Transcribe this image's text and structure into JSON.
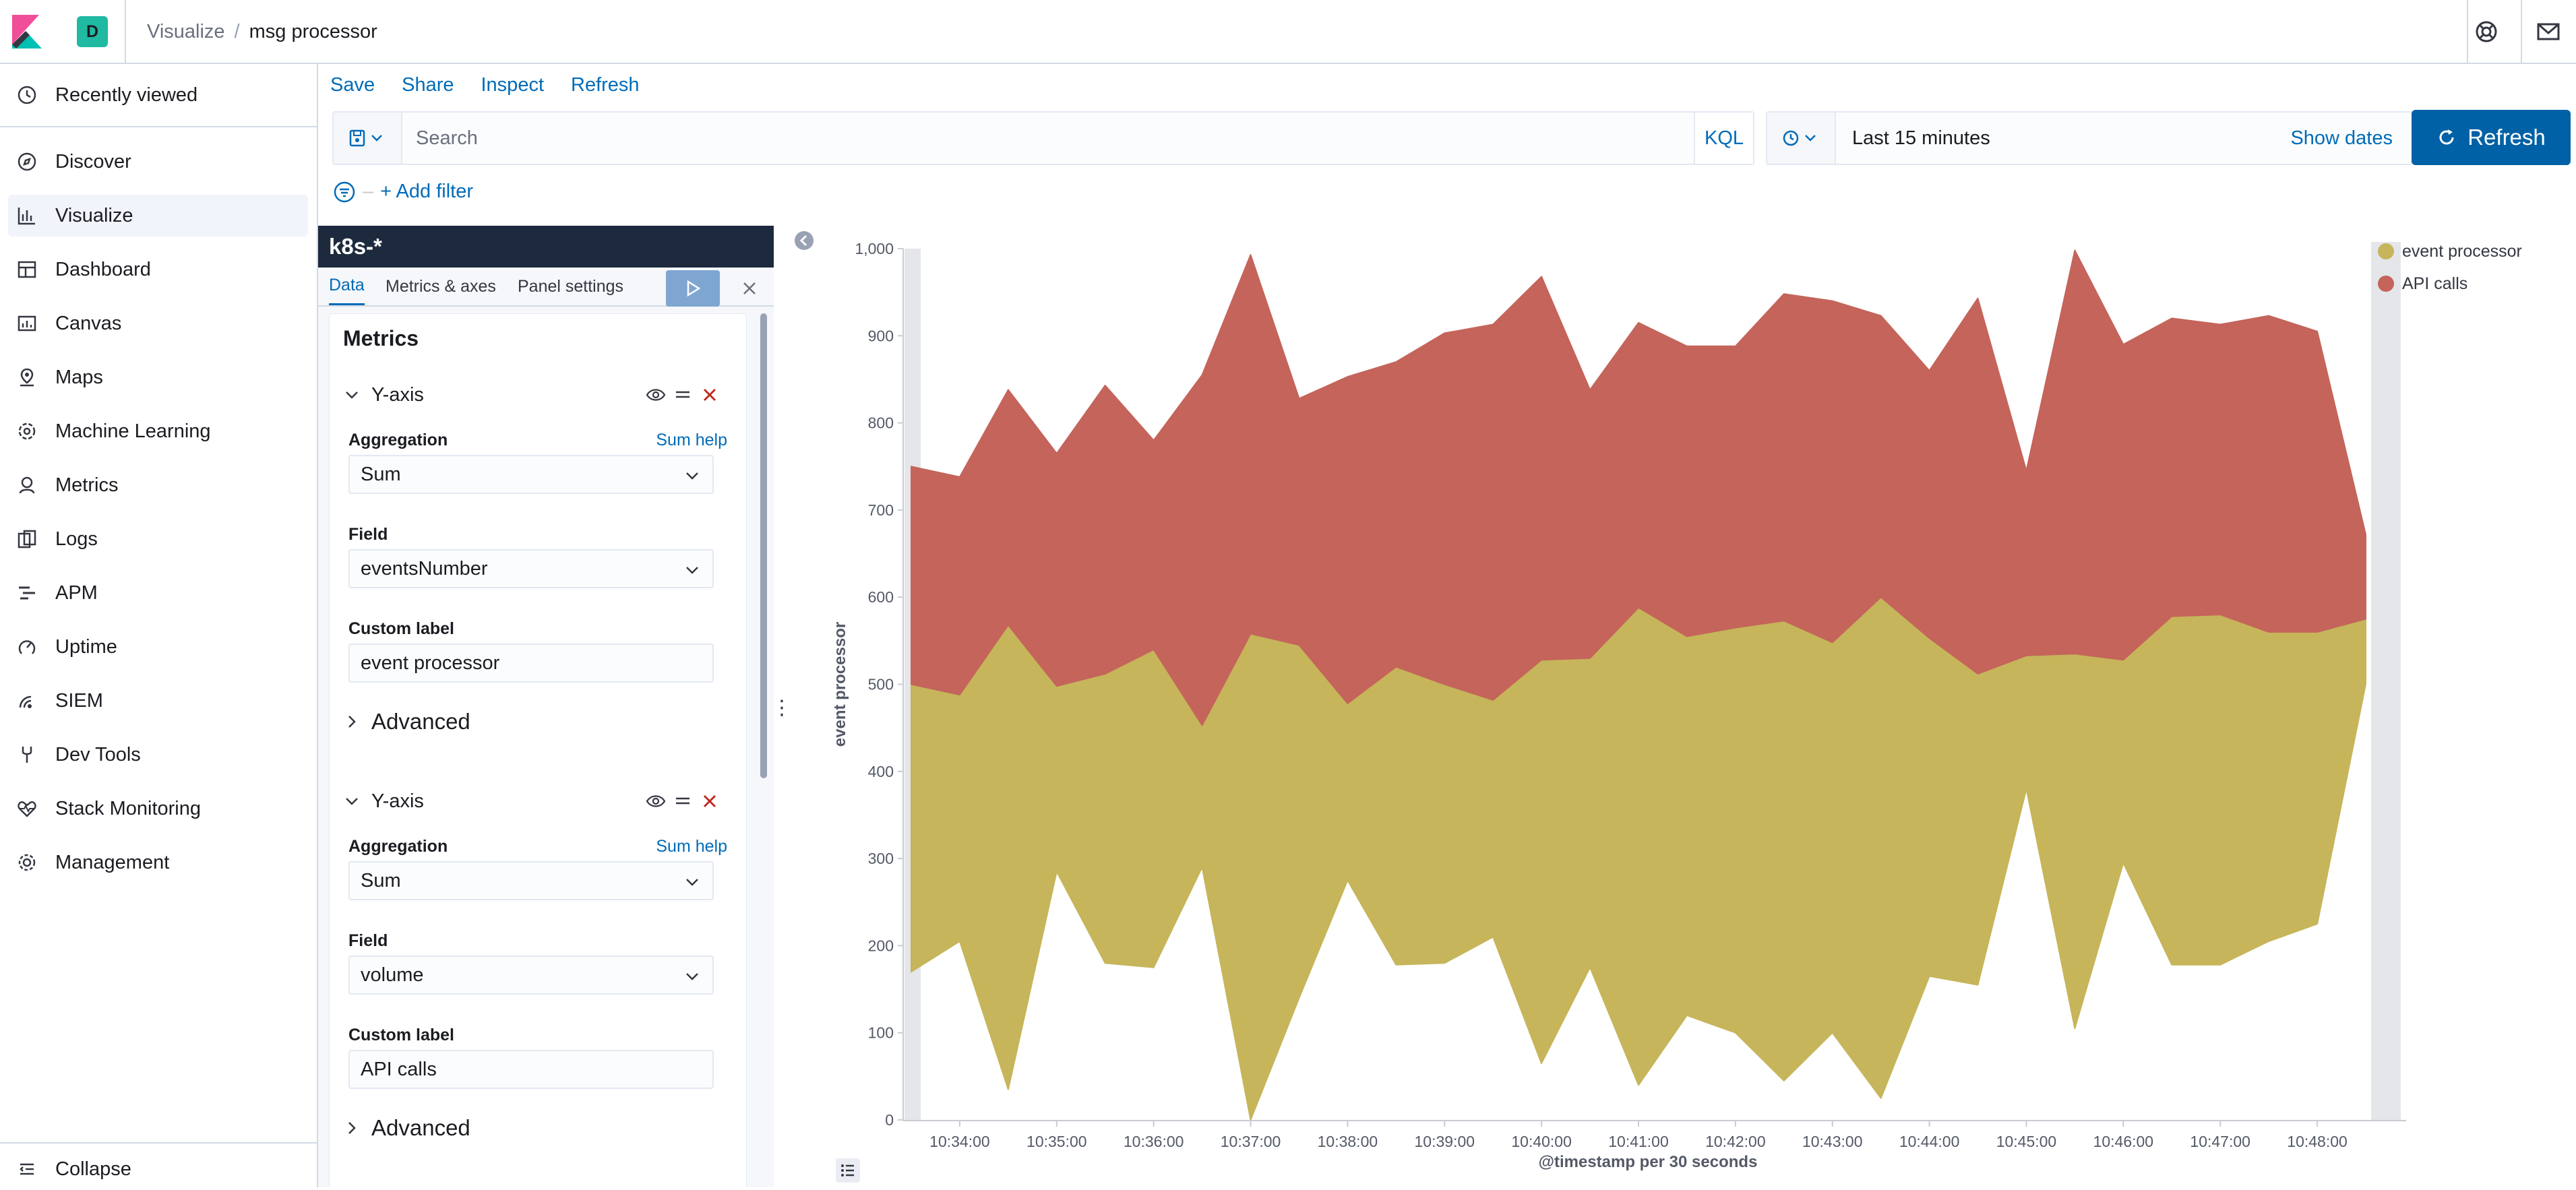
{
  "header": {
    "space_initial": "D",
    "breadcrumb_parent": "Visualize",
    "breadcrumb_current": "msg processor"
  },
  "nav": {
    "recently_viewed": "Recently viewed",
    "items": [
      {
        "label": "Discover",
        "icon": "compass-icon"
      },
      {
        "label": "Visualize",
        "icon": "visualize-icon"
      },
      {
        "label": "Dashboard",
        "icon": "dashboard-icon"
      },
      {
        "label": "Canvas",
        "icon": "canvas-icon"
      },
      {
        "label": "Maps",
        "icon": "maps-icon"
      },
      {
        "label": "Machine Learning",
        "icon": "machine-learning-icon"
      },
      {
        "label": "Metrics",
        "icon": "metrics-icon"
      },
      {
        "label": "Logs",
        "icon": "logs-icon"
      },
      {
        "label": "APM",
        "icon": "apm-icon"
      },
      {
        "label": "Uptime",
        "icon": "uptime-icon"
      },
      {
        "label": "SIEM",
        "icon": "siem-icon"
      },
      {
        "label": "Dev Tools",
        "icon": "dev-tools-icon"
      },
      {
        "label": "Stack Monitoring",
        "icon": "stack-monitoring-icon"
      },
      {
        "label": "Management",
        "icon": "gear-icon"
      }
    ],
    "collapse": "Collapse"
  },
  "topmenu": {
    "save": "Save",
    "share": "Share",
    "inspect": "Inspect",
    "refresh": "Refresh"
  },
  "query": {
    "placeholder": "Search",
    "language": "KQL",
    "time_range": "Last 15 minutes",
    "show_dates": "Show dates",
    "refresh_button": "Refresh",
    "add_filter": "+ Add filter"
  },
  "editor": {
    "index_pattern": "k8s-*",
    "tabs": [
      "Data",
      "Metrics & axes",
      "Panel settings"
    ],
    "metrics_title": "Metrics",
    "metrics": [
      {
        "title": "Y-axis",
        "aggregation_label": "Aggregation",
        "help": "Sum help",
        "aggregation": "Sum",
        "field_label": "Field",
        "field": "eventsNumber",
        "custom_label_label": "Custom label",
        "custom_label": "event processor",
        "advanced": "Advanced"
      },
      {
        "title": "Y-axis",
        "aggregation_label": "Aggregation",
        "help": "Sum help",
        "aggregation": "Sum",
        "field_label": "Field",
        "field": "volume",
        "custom_label_label": "Custom label",
        "custom_label": "API calls",
        "advanced": "Advanced"
      }
    ]
  },
  "colors": {
    "series1": "#c6b55a",
    "series2": "#c4645b",
    "primary": "#0061a6",
    "nav_dark": "#1d2a3e"
  },
  "chart_data": {
    "type": "area",
    "stacked": true,
    "ylabel": "event processor",
    "xlabel": "@timestamp per 30 seconds",
    "ylim": [
      0,
      1000
    ],
    "yticks": [
      0,
      100,
      200,
      300,
      400,
      500,
      600,
      700,
      800,
      900,
      1000
    ],
    "ytick_labels": [
      "0",
      "100",
      "200",
      "300",
      "400",
      "500",
      "600",
      "700",
      "800",
      "900",
      "1,000"
    ],
    "x_start": "10:33:30",
    "x_step_seconds": 30,
    "x_tick_labels": [
      "10:34:00",
      "10:35:00",
      "10:36:00",
      "10:37:00",
      "10:38:00",
      "10:39:00",
      "10:40:00",
      "10:41:00",
      "10:42:00",
      "10:43:00",
      "10:44:00",
      "10:45:00",
      "10:46:00",
      "10:47:00",
      "10:48:00"
    ],
    "legend_position": "top-right",
    "series": [
      {
        "name": "event processor",
        "low": [
          170,
          205,
          35,
          285,
          180,
          175,
          290,
          0,
          140,
          275,
          178,
          180,
          210,
          65,
          175,
          40,
          120,
          100,
          45,
          100,
          25,
          165,
          155,
          380,
          105,
          295,
          178,
          178,
          205,
          225,
          500
        ],
        "high": [
          500,
          488,
          568,
          498,
          512,
          540,
          453,
          558,
          545,
          478,
          520,
          500,
          482,
          528,
          530,
          588,
          555,
          565,
          573,
          548,
          600,
          553,
          512,
          533,
          535,
          528,
          578,
          580,
          560,
          560,
          575
        ]
      },
      {
        "name": "API calls",
        "low": [
          500,
          488,
          568,
          498,
          512,
          540,
          453,
          558,
          545,
          478,
          520,
          500,
          482,
          528,
          530,
          588,
          555,
          565,
          573,
          548,
          600,
          553,
          512,
          533,
          535,
          528,
          578,
          580,
          560,
          560,
          575
        ],
        "high": [
          750,
          738,
          838,
          765,
          843,
          780,
          855,
          993,
          828,
          853,
          870,
          903,
          913,
          968,
          838,
          915,
          888,
          888,
          948,
          940,
          923,
          860,
          943,
          745,
          998,
          890,
          920,
          913,
          923,
          905,
          672
        ]
      }
    ]
  }
}
